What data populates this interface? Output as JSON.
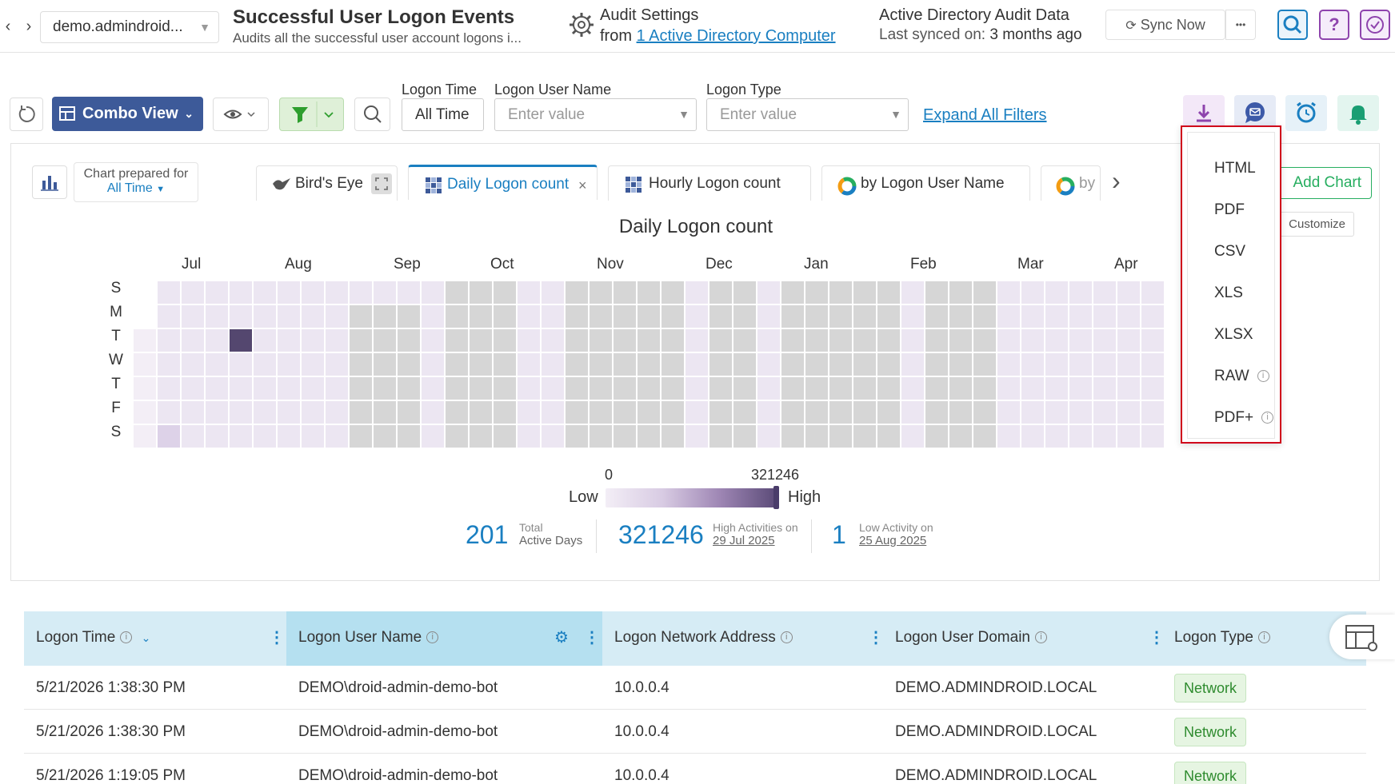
{
  "nav": {
    "back": "‹",
    "forward": "›"
  },
  "tenant": "demo.admindroid...",
  "page": {
    "title": "Successful User Logon Events",
    "subtitle": "Audits all the successful user account logons i..."
  },
  "audit": {
    "title": "Audit Settings",
    "from_prefix": "from",
    "link": "1 Active Directory Computer"
  },
  "adaudit": {
    "title": "Active Directory Audit Data",
    "sync_label": "Last synced on:",
    "sync_value": "3 months ago"
  },
  "toolbar": {
    "sync_now": "Sync Now",
    "more": "•••",
    "help": "?"
  },
  "view": {
    "combo": "Combo View"
  },
  "filters": {
    "logon_time": {
      "label": "Logon Time",
      "value": "All Time"
    },
    "logon_user": {
      "label": "Logon User Name",
      "placeholder": "Enter value"
    },
    "logon_type": {
      "label": "Logon Type",
      "placeholder": "Enter value"
    },
    "expand": "Expand All Filters"
  },
  "chart_prepared": {
    "label": "Chart prepared for",
    "value": "All Time"
  },
  "tabs": [
    "Bird's Eye",
    "Daily Logon count",
    "Hourly Logon count",
    "by Logon User Name",
    "by"
  ],
  "add_chart": "Add Chart",
  "customize": "Customize",
  "chart_data": {
    "type": "heatmap",
    "title": "Daily Logon count",
    "months": [
      "Jul",
      "Aug",
      "Sep",
      "Oct",
      "Nov",
      "Dec",
      "Jan",
      "Feb",
      "Mar",
      "Apr"
    ],
    "days": [
      "S",
      "M",
      "T",
      "W",
      "T",
      "F",
      "S"
    ],
    "legend": {
      "min": "0",
      "max": "321246",
      "low": "Low",
      "high": "High"
    },
    "colors": {
      "empty": "#d6d6d6",
      "low": "#ece6f2",
      "high": "#54476f",
      "lightest": "#f3eef6"
    }
  },
  "stats": {
    "total": {
      "value": "201",
      "label1": "Total",
      "label2": "Active Days"
    },
    "high": {
      "value": "321246",
      "label1": "High Activities on",
      "label2": "29 Jul 2025"
    },
    "low": {
      "value": "1",
      "label1": "Low Activity on",
      "label2": "25 Aug 2025"
    }
  },
  "table": {
    "columns": [
      "Logon Time",
      "Logon User Name",
      "Logon Network Address",
      "Logon User Domain",
      "Logon Type"
    ],
    "rows": [
      [
        "5/21/2026 1:38:30 PM",
        "DEMO\\droid-admin-demo-bot",
        "10.0.0.4",
        "DEMO.ADMINDROID.LOCAL",
        "Network"
      ],
      [
        "5/21/2026 1:38:30 PM",
        "DEMO\\droid-admin-demo-bot",
        "10.0.0.4",
        "DEMO.ADMINDROID.LOCAL",
        "Network"
      ],
      [
        "5/21/2026 1:19:05 PM",
        "DEMO\\droid-admin-demo-bot",
        "10.0.0.4",
        "DEMO.ADMINDROID.LOCAL",
        "Network"
      ]
    ]
  },
  "export_menu": [
    "HTML",
    "PDF",
    "CSV",
    "XLS",
    "XLSX",
    "RAW",
    "PDF+"
  ]
}
